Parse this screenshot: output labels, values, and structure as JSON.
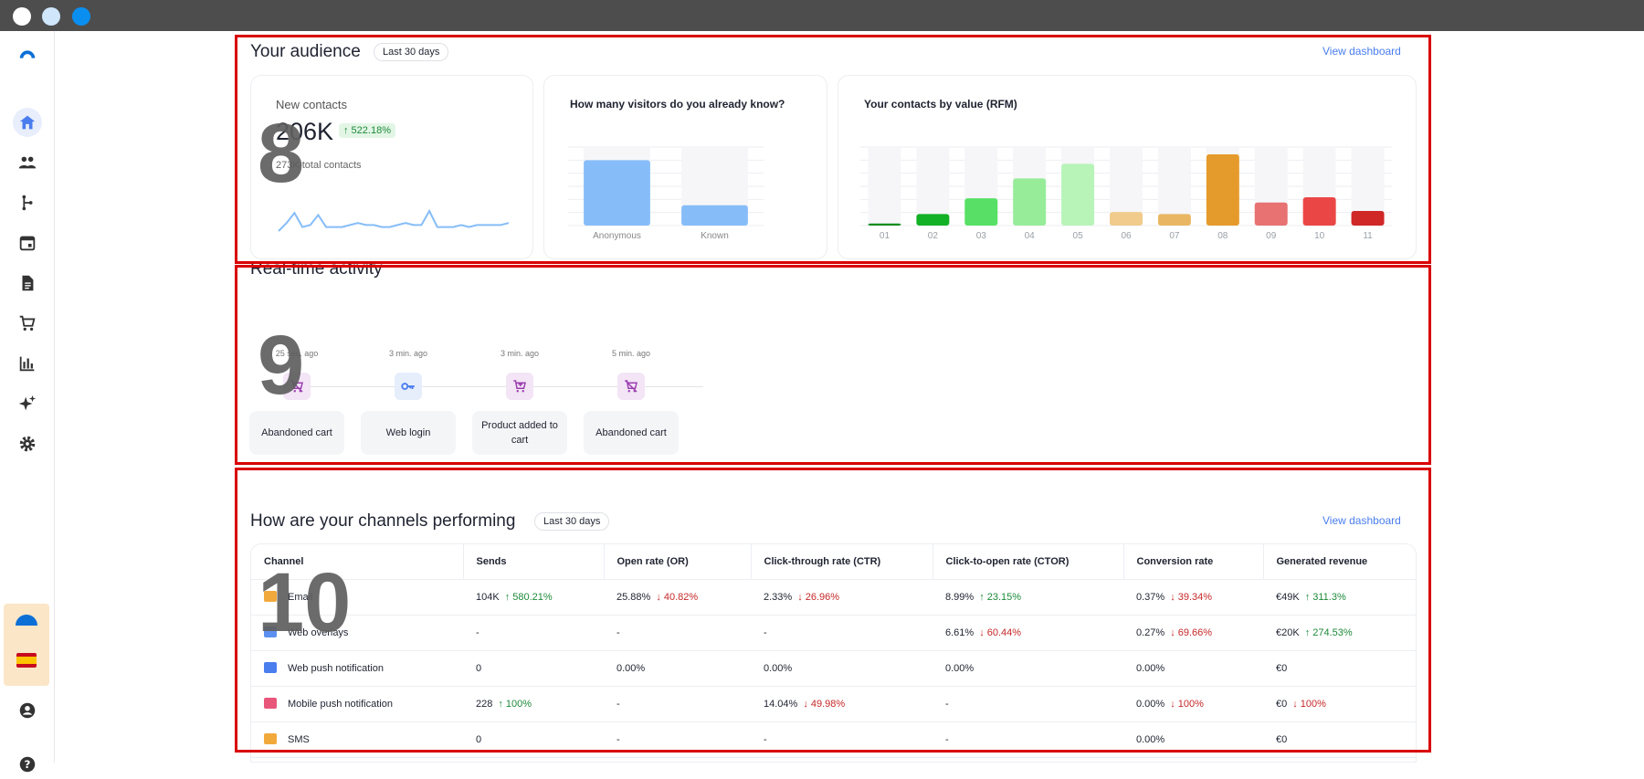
{
  "audience": {
    "title": "Your audience",
    "range": "Last 30 days",
    "link": "View dashboard",
    "new_contacts": {
      "label": "New contacts",
      "value": "206K",
      "delta": "↑ 522.18%",
      "sub": "273K total contacts"
    },
    "visitors_title": "How many visitors do you already know?",
    "rfm_title": "Your contacts by value (RFM)"
  },
  "chart_data": [
    {
      "type": "line",
      "x": [
        1,
        2,
        3,
        4,
        5,
        6,
        7,
        8,
        9,
        10,
        11,
        12,
        13,
        14,
        15,
        16,
        17,
        18,
        19,
        20,
        21,
        22,
        23,
        24,
        25,
        26,
        27,
        28,
        29,
        30
      ],
      "values": [
        1,
        5,
        10,
        3,
        4,
        9,
        3,
        3,
        3,
        4,
        5,
        4,
        4,
        3,
        3,
        4,
        5,
        4,
        4,
        11,
        3,
        3,
        3,
        4,
        3,
        4,
        4,
        4,
        4,
        5
      ],
      "title": "",
      "xlabel": "",
      "ylabel": ""
    },
    {
      "type": "bar",
      "title": "How many visitors do you already know?",
      "categories": [
        "Anonymous",
        "Known"
      ],
      "values": [
        100,
        31
      ],
      "ylim": [
        0,
        120
      ],
      "grid": true,
      "colors": [
        "#86bdf8",
        "#86bdf8"
      ]
    },
    {
      "type": "bar",
      "title": "Your contacts by value (RFM)",
      "categories": [
        "01",
        "02",
        "03",
        "04",
        "05",
        "06",
        "07",
        "08",
        "09",
        "10",
        "11"
      ],
      "values": [
        2,
        11,
        26,
        45,
        59,
        13,
        11,
        68,
        22,
        27,
        14
      ],
      "ylim": [
        0,
        75
      ],
      "grid": true,
      "colors": [
        "#0f8c1e",
        "#13b125",
        "#57e065",
        "#97ec9a",
        "#b8f4b8",
        "#f0cb8c",
        "#e9b764",
        "#e59b2c",
        "#e87272",
        "#eb4646",
        "#d02727"
      ]
    }
  ],
  "activity": {
    "title": "Real-time activity",
    "events": [
      {
        "time": "25 sec. ago",
        "label": "Abandoned cart"
      },
      {
        "time": "3 min. ago",
        "label": "Web login"
      },
      {
        "time": "3 min. ago",
        "label": "Product added to cart"
      },
      {
        "time": "5 min. ago",
        "label": "Abandoned cart"
      }
    ]
  },
  "channels": {
    "title": "How are your channels performing",
    "range": "Last 30 days",
    "link": "View dashboard",
    "headers": [
      "Channel",
      "Sends",
      "Open rate (OR)",
      "Click-through rate (CTR)",
      "Click-to-open rate (CTOR)",
      "Conversion rate",
      "Generated revenue"
    ],
    "rows": [
      {
        "name": "Email",
        "icon_color": "#f2a93b",
        "sends": "104K",
        "sends_d": "↑ 580.21%",
        "sends_dir": "up",
        "or": "25.88%",
        "or_d": "↓ 40.82%",
        "or_dir": "down",
        "ctr": "2.33%",
        "ctr_d": "↓ 26.96%",
        "ctr_dir": "down",
        "ctor": "8.99%",
        "ctor_d": "↑ 23.15%",
        "ctor_dir": "up",
        "conv": "0.37%",
        "conv_d": "↓ 39.34%",
        "conv_dir": "down",
        "rev": "€49K",
        "rev_d": "↑ 311.3%",
        "rev_dir": "up"
      },
      {
        "name": "Web overlays",
        "icon_color": "#5b8ff0",
        "sends": "-",
        "sends_d": "",
        "sends_dir": "",
        "or": "-",
        "or_d": "",
        "or_dir": "",
        "ctr": "-",
        "ctr_d": "",
        "ctr_dir": "",
        "ctor": "6.61%",
        "ctor_d": "↓ 60.44%",
        "ctor_dir": "down",
        "conv": "0.27%",
        "conv_d": "↓ 69.66%",
        "conv_dir": "down",
        "rev": "€20K",
        "rev_d": "↑ 274.53%",
        "rev_dir": "up"
      },
      {
        "name": "Web push notification",
        "icon_color": "#4a7dee",
        "sends": "0",
        "sends_d": "",
        "sends_dir": "",
        "or": "0.00%",
        "or_d": "",
        "or_dir": "",
        "ctr": "0.00%",
        "ctr_d": "",
        "ctr_dir": "",
        "ctor": "0.00%",
        "ctor_d": "",
        "ctor_dir": "",
        "conv": "0.00%",
        "conv_d": "",
        "conv_dir": "",
        "rev": "€0",
        "rev_d": "",
        "rev_dir": ""
      },
      {
        "name": "Mobile push notification",
        "icon_color": "#e8567a",
        "sends": "228",
        "sends_d": "↑ 100%",
        "sends_dir": "up",
        "or": "-",
        "or_d": "",
        "or_dir": "",
        "ctr": "14.04%",
        "ctr_d": "↓ 49.98%",
        "ctr_dir": "down",
        "ctor": "-",
        "ctor_d": "",
        "ctor_dir": "",
        "conv": "0.00%",
        "conv_d": "↓ 100%",
        "conv_dir": "down",
        "rev": "€0",
        "rev_d": "↓ 100%",
        "rev_dir": "down"
      },
      {
        "name": "SMS",
        "icon_color": "#f2a93b",
        "sends": "0",
        "sends_d": "",
        "sends_dir": "",
        "or": "-",
        "or_d": "",
        "or_dir": "",
        "ctr": "-",
        "ctr_d": "",
        "ctr_dir": "",
        "ctor": "-",
        "ctor_d": "",
        "ctor_dir": "",
        "conv": "0.00%",
        "conv_d": "",
        "conv_dir": "",
        "rev": "€0",
        "rev_d": "",
        "rev_dir": ""
      }
    ]
  },
  "annotations": {
    "box1": "8",
    "box2": "9",
    "box3": "10"
  },
  "colors": {
    "accent": "#4a7dee",
    "highlight": "#d90000",
    "up": "#1d8a3a",
    "down": "#c62828"
  }
}
